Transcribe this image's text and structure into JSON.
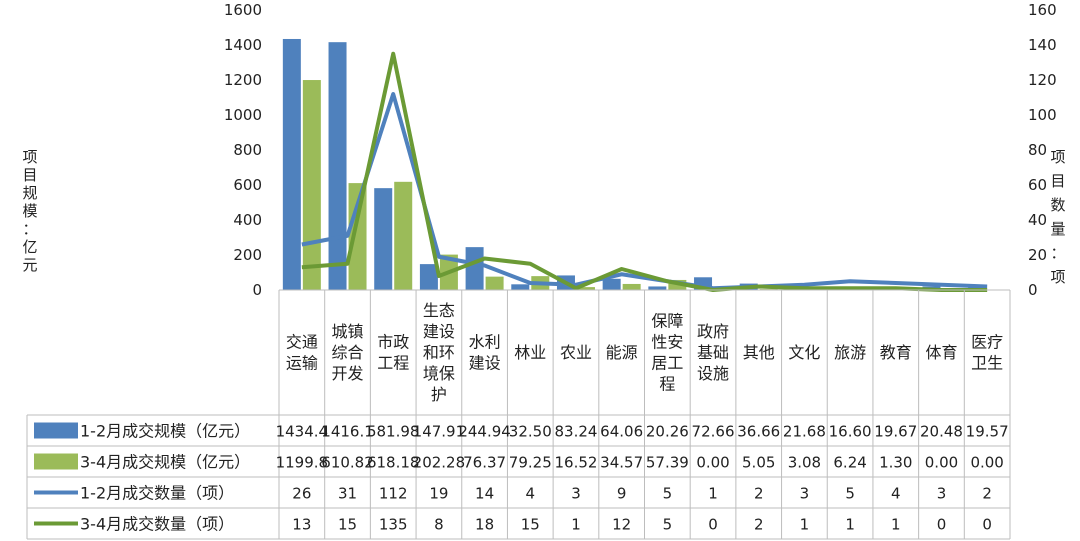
{
  "chart_data": {
    "type": "bar",
    "categories": [
      [
        "交通",
        "运输"
      ],
      [
        "城镇",
        "综合",
        "开发"
      ],
      [
        "市政",
        "工程"
      ],
      [
        "生态",
        "建设",
        "和环",
        "境保",
        "护"
      ],
      [
        "水利",
        "建设"
      ],
      [
        "林业"
      ],
      [
        "农业"
      ],
      [
        "能源"
      ],
      [
        "保障",
        "性安",
        "居工",
        "程"
      ],
      [
        "政府",
        "基础",
        "设施"
      ],
      [
        "其他"
      ],
      [
        "文化"
      ],
      [
        "旅游"
      ],
      [
        "教育"
      ],
      [
        "体育"
      ],
      [
        "医疗",
        "卫生"
      ]
    ],
    "y_left_label_chars": [
      "项",
      "目",
      "规",
      "模",
      "：",
      "亿",
      "元"
    ],
    "y_right_label_chars": [
      "项",
      "目",
      "数",
      "量",
      "：",
      "项"
    ],
    "y_left_ticks": [
      "0",
      "200",
      "400",
      "600",
      "800",
      "1000",
      "1200",
      "1400",
      "1600"
    ],
    "y_right_ticks": [
      "0",
      "20",
      "40",
      "60",
      "80",
      "100",
      "120",
      "140",
      "160"
    ],
    "ylim_left": [
      0,
      1600
    ],
    "ylim_right": [
      0,
      160
    ],
    "bar_series": [
      {
        "name": "1-2月成交规模（亿元）",
        "color": "#4f81bd",
        "values": [
          1434.4,
          1416.1,
          581.98,
          147.91,
          244.94,
          32.5,
          83.24,
          64.06,
          20.26,
          72.66,
          36.66,
          21.68,
          16.6,
          19.67,
          20.48,
          19.57
        ],
        "labels": [
          "1434.4",
          "1416.1",
          "581.98",
          "147.91",
          "244.94",
          "32.50",
          "83.24",
          "64.06",
          "20.26",
          "72.66",
          "36.66",
          "21.68",
          "16.60",
          "19.67",
          "20.48",
          "19.57"
        ]
      },
      {
        "name": "3-4月成交规模（亿元）",
        "color": "#9bbb59",
        "values": [
          1199.8,
          610.82,
          618.18,
          202.28,
          76.37,
          79.25,
          16.52,
          34.57,
          57.39,
          0,
          5.05,
          3.08,
          6.24,
          1.3,
          0,
          0
        ],
        "labels": [
          "1199.8",
          "610.82",
          "618.18",
          "202.28",
          "76.37",
          "79.25",
          "16.52",
          "34.57",
          "57.39",
          "0.00",
          "5.05",
          "3.08",
          "6.24",
          "1.30",
          "0.00",
          "0.00"
        ]
      }
    ],
    "line_series": [
      {
        "name": "1-2月成交数量（项）",
        "color": "#4f81bd",
        "values": [
          26,
          31,
          112,
          19,
          14,
          4,
          3,
          9,
          5,
          1,
          2,
          3,
          5,
          4,
          3,
          2
        ]
      },
      {
        "name": "3-4月成交数量（项）",
        "color": "#6b9a35",
        "values": [
          13,
          15,
          135,
          8,
          18,
          15,
          1,
          12,
          5,
          0,
          2,
          1,
          1,
          1,
          0,
          0
        ]
      }
    ]
  }
}
